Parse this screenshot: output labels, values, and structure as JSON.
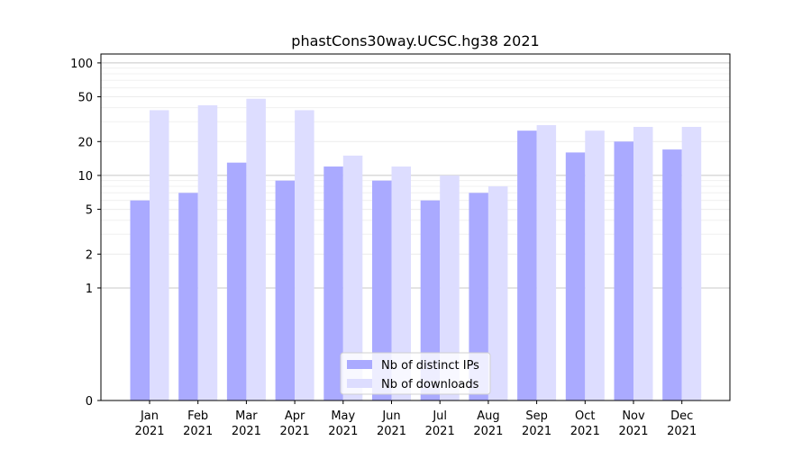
{
  "chart_data": {
    "type": "bar",
    "title": "phastCons30way.UCSC.hg38 2021",
    "xlabel": "",
    "ylabel": "",
    "yscale": "symlog",
    "ylim": [
      0,
      120
    ],
    "yticks": [
      0,
      1,
      2,
      5,
      10,
      20,
      50,
      100
    ],
    "categories": [
      {
        "month": "Jan",
        "year": "2021"
      },
      {
        "month": "Feb",
        "year": "2021"
      },
      {
        "month": "Mar",
        "year": "2021"
      },
      {
        "month": "Apr",
        "year": "2021"
      },
      {
        "month": "May",
        "year": "2021"
      },
      {
        "month": "Jun",
        "year": "2021"
      },
      {
        "month": "Jul",
        "year": "2021"
      },
      {
        "month": "Aug",
        "year": "2021"
      },
      {
        "month": "Sep",
        "year": "2021"
      },
      {
        "month": "Oct",
        "year": "2021"
      },
      {
        "month": "Nov",
        "year": "2021"
      },
      {
        "month": "Dec",
        "year": "2021"
      }
    ],
    "series": [
      {
        "name": "Nb of distinct IPs",
        "color": "#aaaaff",
        "values": [
          6,
          7,
          13,
          9,
          12,
          9,
          6,
          7,
          25,
          16,
          20,
          17
        ]
      },
      {
        "name": "Nb of downloads",
        "color": "#ddddff",
        "values": [
          38,
          42,
          48,
          38,
          15,
          12,
          10,
          8,
          28,
          25,
          27,
          27
        ]
      }
    ],
    "legend_position": "bottom-center",
    "grid": true
  }
}
